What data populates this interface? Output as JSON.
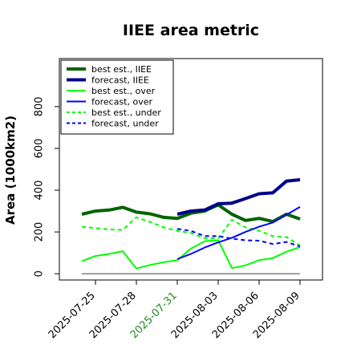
{
  "chart_data": {
    "type": "line",
    "title": "IIEE area metric",
    "ylabel": "Area (1000km2)",
    "xlabel": "",
    "x_dates": [
      "2025-07-24",
      "2025-07-25",
      "2025-07-26",
      "2025-07-27",
      "2025-07-28",
      "2025-07-29",
      "2025-07-30",
      "2025-07-31",
      "2025-08-01",
      "2025-08-02",
      "2025-08-03",
      "2025-08-04",
      "2025-08-05",
      "2025-08-06",
      "2025-08-07",
      "2025-08-08",
      "2025-08-09"
    ],
    "xticks": [
      {
        "date": "2025-07-25",
        "label": "2025-07-25",
        "color": "#000000"
      },
      {
        "date": "2025-07-28",
        "label": "2025-07-28",
        "color": "#000000"
      },
      {
        "date": "2025-07-31",
        "label": "2025-07-31",
        "color": "#228b22"
      },
      {
        "date": "2025-08-03",
        "label": "2025-08-03",
        "color": "#000000"
      },
      {
        "date": "2025-08-06",
        "label": "2025-08-06",
        "color": "#000000"
      },
      {
        "date": "2025-08-09",
        "label": "2025-08-09",
        "color": "#000000"
      }
    ],
    "yticks": [
      0,
      200,
      400,
      600,
      800
    ],
    "ylim": [
      -30,
      1030
    ],
    "legend_position": "top-left",
    "grid": false,
    "series": [
      {
        "name": "best est., IIEE",
        "color": "#006400",
        "width": 4,
        "dash": "",
        "x": [
          "2025-07-24",
          "2025-07-25",
          "2025-07-26",
          "2025-07-27",
          "2025-07-28",
          "2025-07-29",
          "2025-07-30",
          "2025-07-31",
          "2025-08-01",
          "2025-08-02",
          "2025-08-03",
          "2025-08-04",
          "2025-08-05",
          "2025-08-06",
          "2025-08-07",
          "2025-08-08",
          "2025-08-09"
        ],
        "values": [
          285,
          300,
          305,
          318,
          295,
          287,
          270,
          265,
          290,
          300,
          330,
          285,
          255,
          265,
          250,
          285,
          262
        ]
      },
      {
        "name": "forecast, IIEE",
        "color": "#00008b",
        "width": 4,
        "dash": "",
        "x": [
          "2025-07-31",
          "2025-08-01",
          "2025-08-02",
          "2025-08-03",
          "2025-08-04",
          "2025-08-05",
          "2025-08-06",
          "2025-08-07",
          "2025-08-08",
          "2025-08-09"
        ],
        "values": [
          285,
          300,
          305,
          335,
          338,
          360,
          383,
          387,
          443,
          450
        ]
      },
      {
        "name": "best est., over",
        "color": "#00ff00",
        "width": 2,
        "dash": "",
        "x": [
          "2025-07-24",
          "2025-07-25",
          "2025-07-26",
          "2025-07-27",
          "2025-07-28",
          "2025-07-29",
          "2025-07-30",
          "2025-07-31",
          "2025-08-01",
          "2025-08-02",
          "2025-08-03",
          "2025-08-04",
          "2025-08-05",
          "2025-08-06",
          "2025-08-07",
          "2025-08-08",
          "2025-08-09"
        ],
        "values": [
          60,
          85,
          95,
          108,
          25,
          42,
          55,
          65,
          120,
          155,
          160,
          27,
          40,
          65,
          75,
          105,
          128
        ]
      },
      {
        "name": "forecast, over",
        "color": "#0000ff",
        "width": 2,
        "dash": "",
        "x": [
          "2025-07-31",
          "2025-08-01",
          "2025-08-02",
          "2025-08-03",
          "2025-08-04",
          "2025-08-05",
          "2025-08-06",
          "2025-08-07",
          "2025-08-08",
          "2025-08-09"
        ],
        "values": [
          70,
          95,
          125,
          150,
          172,
          200,
          225,
          245,
          282,
          320
        ]
      },
      {
        "name": "best est., under",
        "color": "#00ff00",
        "width": 2,
        "dash": "5,4",
        "x": [
          "2025-07-24",
          "2025-07-25",
          "2025-07-26",
          "2025-07-27",
          "2025-07-28",
          "2025-07-29",
          "2025-07-30",
          "2025-07-31",
          "2025-08-01",
          "2025-08-02",
          "2025-08-03",
          "2025-08-04",
          "2025-08-05",
          "2025-08-06",
          "2025-08-07",
          "2025-08-08",
          "2025-08-09"
        ],
        "values": [
          225,
          218,
          212,
          210,
          270,
          248,
          222,
          205,
          195,
          170,
          170,
          258,
          222,
          205,
          180,
          175,
          135
        ]
      },
      {
        "name": "forecast, under",
        "color": "#0000ff",
        "width": 2,
        "dash": "5,4",
        "x": [
          "2025-07-31",
          "2025-08-01",
          "2025-08-02",
          "2025-08-03",
          "2025-08-04",
          "2025-08-05",
          "2025-08-06",
          "2025-08-07",
          "2025-08-08",
          "2025-08-09"
        ],
        "values": [
          215,
          205,
          180,
          180,
          168,
          160,
          158,
          142,
          152,
          130
        ]
      },
      {
        "name": "",
        "color": "#808080",
        "width": 1.5,
        "dash": "",
        "x": [
          "2025-07-24",
          "2025-08-09"
        ],
        "values": [
          0,
          0
        ]
      }
    ]
  }
}
